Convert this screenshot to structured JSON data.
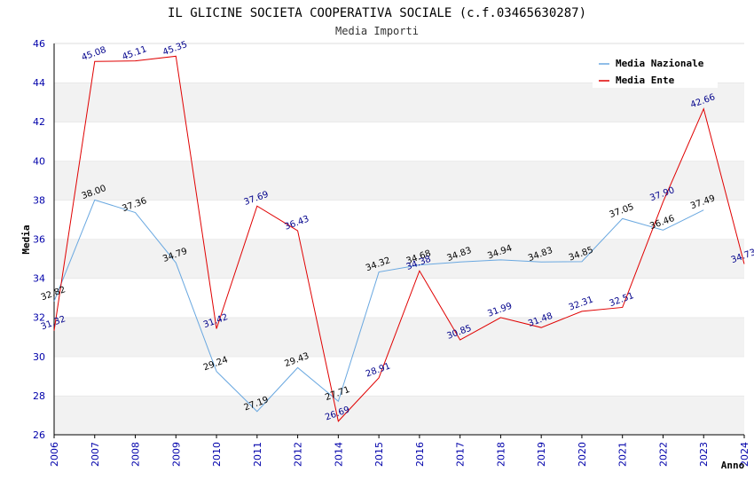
{
  "chart_data": {
    "type": "line",
    "title": "IL GLICINE SOCIETA COOPERATIVA SOCIALE (c.f.03465630287)",
    "subtitle": "Media Importi",
    "xlabel": "Anno",
    "ylabel": "Media",
    "ylim": [
      26,
      46
    ],
    "yticks": [
      26,
      28,
      30,
      32,
      34,
      36,
      38,
      40,
      42,
      44,
      46
    ],
    "categories": [
      "2006",
      "2007",
      "2008",
      "2009",
      "2010",
      "2011",
      "2012",
      "2014",
      "2015",
      "2016",
      "2017",
      "2018",
      "2019",
      "2020",
      "2021",
      "2022",
      "2023",
      "2024"
    ],
    "series": [
      {
        "name": "Media Nazionale",
        "color": "#6aa8e0",
        "values": [
          32.82,
          38.0,
          37.36,
          34.79,
          29.24,
          27.19,
          29.43,
          27.71,
          34.32,
          34.68,
          34.83,
          34.94,
          34.83,
          34.85,
          37.05,
          36.46,
          37.49,
          null
        ],
        "labels": [
          "32.82",
          "38.00",
          "37.36",
          "34.79",
          "29.24",
          "27.19",
          "29.43",
          "27.71",
          "34.32",
          "34.68",
          "34.83",
          "34.94",
          "34.83",
          "34.85",
          "37.05",
          "36.46",
          "37.49",
          ""
        ]
      },
      {
        "name": "Media Ente",
        "color": "#e00000",
        "values": [
          31.32,
          45.08,
          45.11,
          45.35,
          31.42,
          37.69,
          36.43,
          26.69,
          28.91,
          34.38,
          30.85,
          31.99,
          31.48,
          32.31,
          32.51,
          37.9,
          42.66,
          34.73
        ],
        "labels": [
          "31.32",
          "45.08",
          "45.11",
          "45.35",
          "31.42",
          "37.69",
          "36.43",
          "26.69",
          "28.91",
          "34.38",
          "30.85",
          "31.99",
          "31.48",
          "32.31",
          "32.51",
          "37.90",
          "42.66",
          "34.73"
        ]
      }
    ],
    "legend_position": "top-right",
    "grid": true
  }
}
